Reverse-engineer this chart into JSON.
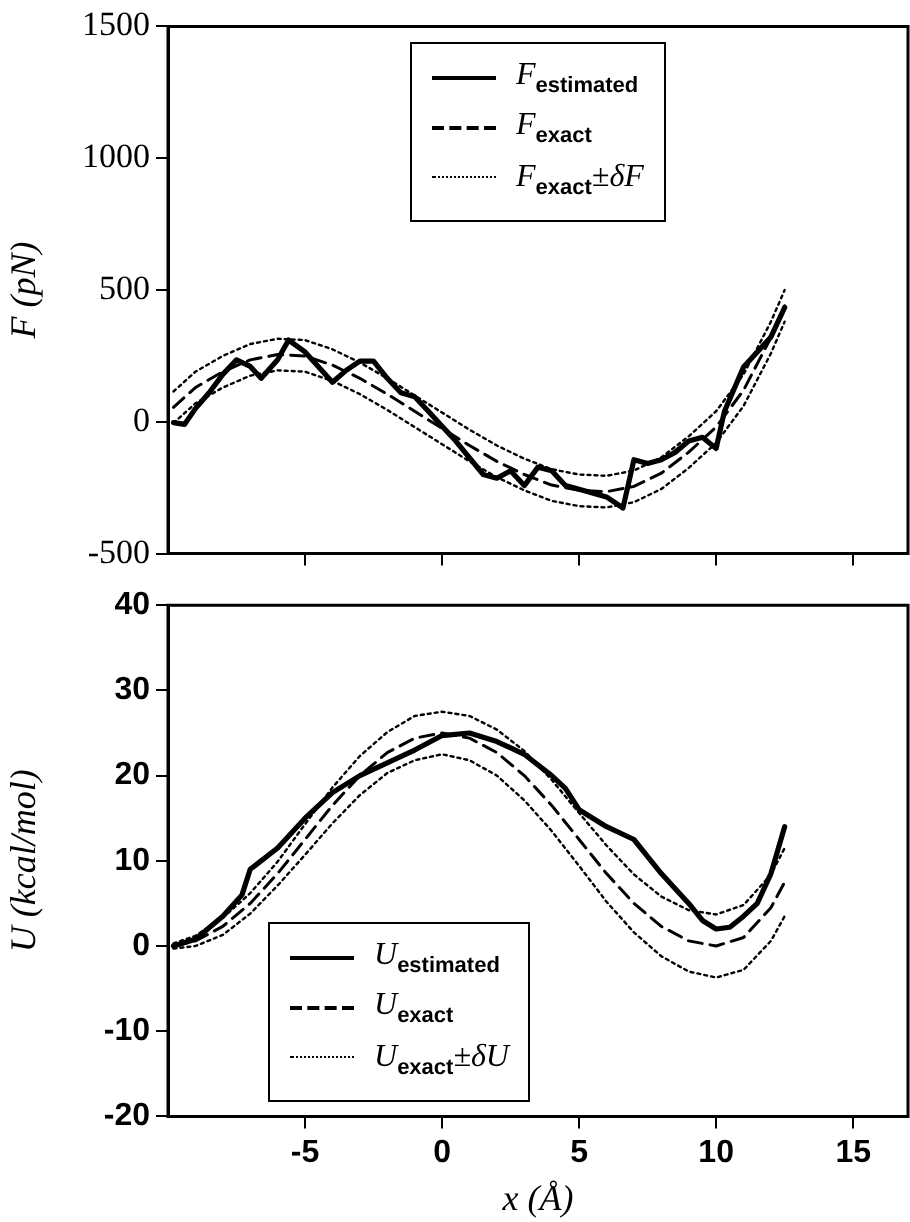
{
  "chart_data": [
    {
      "type": "line",
      "ylabel": "F (pN)",
      "xlim": [
        -10,
        17
      ],
      "xticks": [
        -5,
        0,
        5,
        10,
        15
      ],
      "ylim": [
        -500,
        1500
      ],
      "yticks": [
        -500,
        0,
        500,
        1000,
        1500
      ],
      "tick_labels": "y",
      "legend": "top",
      "series": [
        {
          "name": "F$_{estimated}$",
          "color": "#000000",
          "line_style": "solid",
          "x": [
            -9.8,
            -9.4,
            -9,
            -8.5,
            -8,
            -7.5,
            -7,
            -6.6,
            -6,
            -5.6,
            -5,
            -4,
            -3.5,
            -3,
            -2.5,
            -2,
            -1.5,
            -1,
            -0.5,
            0,
            0.5,
            1.5,
            2,
            2.5,
            3,
            3.5,
            4,
            4.5,
            5,
            6,
            6.6,
            7,
            7.5,
            8,
            8.5,
            9,
            9.5,
            10,
            10.3,
            11,
            11.5,
            12,
            12.5
          ],
          "values": [
            -3,
            -10,
            50,
            110,
            180,
            235,
            210,
            165,
            235,
            310,
            265,
            150,
            195,
            230,
            230,
            165,
            110,
            95,
            40,
            -17,
            -73,
            -200,
            -214,
            -186,
            -242,
            -172,
            -186,
            -242,
            -256,
            -285,
            -327,
            -144,
            -158,
            -144,
            -116,
            -73,
            -59,
            -101,
            39,
            208,
            265,
            322,
            434
          ]
        },
        {
          "name": "F$_{exact}$",
          "color": "#000000",
          "line_style": "dashed",
          "x": [
            -9.8,
            -9,
            -8,
            -7,
            -6,
            -5,
            -4,
            -3,
            -2,
            -1,
            0,
            1,
            2,
            3,
            4,
            5,
            6,
            7,
            8,
            9,
            10,
            11,
            12,
            12.5
          ],
          "values": [
            55,
            130,
            190,
            235,
            255,
            250,
            215,
            165,
            105,
            40,
            -25,
            -90,
            -150,
            -200,
            -240,
            -260,
            -265,
            -245,
            -195,
            -115,
            -20,
            120,
            320,
            440
          ]
        },
        {
          "name": "F$_{exact}$±δF",
          "color": "#000000",
          "line_style": "dotted",
          "x": [
            -9.8,
            -9,
            -8,
            -7,
            -6,
            -5,
            -4,
            -3,
            -2,
            -1,
            0,
            1,
            2,
            3,
            4,
            5,
            6,
            7,
            8,
            9,
            10,
            11,
            12,
            12.5
          ],
          "values": [
            115,
            190,
            250,
            295,
            315,
            310,
            275,
            225,
            165,
            100,
            35,
            -30,
            -90,
            -140,
            -180,
            -200,
            -205,
            -185,
            -135,
            -55,
            40,
            180,
            380,
            500
          ]
        },
        {
          "color": "#000000",
          "line_style": "dotted",
          "x": [
            -9.8,
            -9,
            -8,
            -7,
            -6,
            -5,
            -4,
            -3,
            -2,
            -1,
            0,
            1,
            2,
            3,
            4,
            5,
            6,
            7,
            8,
            9,
            10,
            11,
            12,
            12.5
          ],
          "values": [
            -5,
            70,
            130,
            175,
            195,
            190,
            155,
            105,
            45,
            -20,
            -85,
            -150,
            -210,
            -260,
            -300,
            -320,
            -325,
            -305,
            -255,
            -175,
            -80,
            60,
            260,
            380
          ]
        }
      ]
    },
    {
      "type": "line",
      "xlabel": "x (Å)",
      "ylabel": "U (kcal/mol)",
      "xlim": [
        -10,
        17
      ],
      "xticks": [
        -5,
        0,
        5,
        10,
        15
      ],
      "ylim": [
        -20,
        40
      ],
      "yticks": [
        -20,
        -10,
        0,
        10,
        20,
        30,
        40
      ],
      "legend": "bottom left",
      "series": [
        {
          "name": "U$_{estimated}$",
          "color": "#000000",
          "line_style": "solid",
          "x": [
            -9.8,
            -9,
            -8,
            -7.3,
            -7,
            -6,
            -5,
            -4,
            -3,
            -2,
            -1,
            0,
            1,
            2,
            3,
            4,
            4.5,
            5,
            6,
            7,
            7.5,
            8,
            9,
            9.5,
            10,
            10.5,
            11,
            11.5,
            12,
            12.5
          ],
          "values": [
            0,
            0.8,
            3.5,
            6,
            9,
            11.5,
            15,
            18,
            20,
            21.5,
            23,
            24.7,
            25,
            24,
            22.5,
            20,
            18.5,
            16,
            14,
            12.5,
            10.5,
            8.5,
            5,
            3,
            2,
            2.2,
            3.5,
            5,
            8.5,
            14
          ]
        },
        {
          "name": "U$_{exact}$",
          "color": "#000000",
          "line_style": "dashed",
          "x": [
            -9.8,
            -9,
            -8,
            -7,
            -6,
            -5,
            -4,
            -3,
            -2,
            -1,
            0,
            1,
            2,
            3,
            4,
            5,
            6,
            7,
            8,
            9,
            10,
            11,
            12,
            12.5
          ],
          "values": [
            0,
            0.6,
            2.3,
            5,
            8.5,
            12.5,
            16.5,
            20,
            22.7,
            24.4,
            25,
            24.4,
            22.7,
            20,
            16.5,
            12.5,
            8.5,
            5,
            2.3,
            0.6,
            0,
            1,
            4.5,
            7.5
          ]
        },
        {
          "name": "U$_{exact}$±δU",
          "color": "#000000",
          "line_style": "dotted",
          "x": [
            -9.8,
            -9,
            -8,
            -7,
            -6,
            -5,
            -4,
            -3,
            -2,
            -1,
            0,
            1,
            2,
            3,
            4,
            5,
            6,
            7,
            8,
            9,
            10,
            11,
            12,
            12.5
          ],
          "values": [
            0.3,
            1.2,
            3.3,
            6.2,
            9.9,
            14.3,
            18.6,
            22.3,
            25.1,
            27,
            27.5,
            27,
            25.4,
            22.9,
            19.5,
            15.6,
            11.8,
            8.4,
            5.8,
            4.2,
            3.7,
            4.8,
            8.4,
            11.5
          ]
        },
        {
          "color": "#000000",
          "line_style": "dotted",
          "x": [
            -9.8,
            -9,
            -8,
            -7,
            -6,
            -5,
            -4,
            -3,
            -2,
            -1,
            0,
            1,
            2,
            3,
            4,
            5,
            6,
            7,
            8,
            9,
            10,
            11,
            12,
            12.5
          ],
          "values": [
            -0.3,
            0,
            1.3,
            3.8,
            7.1,
            10.7,
            14.4,
            17.7,
            20.3,
            21.8,
            22.5,
            21.8,
            20,
            17.1,
            13.5,
            9.4,
            5.2,
            1.6,
            -1.2,
            -3,
            -3.7,
            -2.8,
            0.6,
            3.5
          ]
        }
      ]
    }
  ]
}
